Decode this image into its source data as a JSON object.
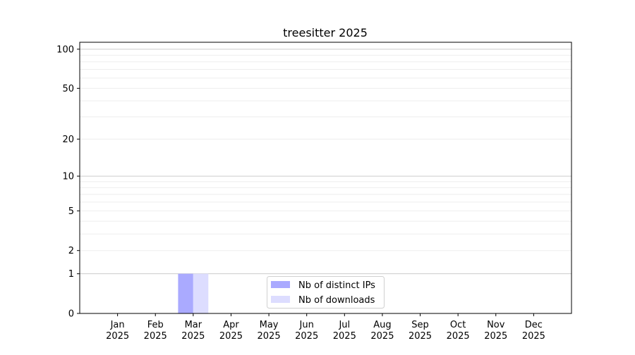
{
  "chart_data": {
    "type": "bar",
    "title": "treesitter 2025",
    "xlabel": "",
    "ylabel": "",
    "yscale": "log10(1+y)",
    "ylim": [
      0,
      113
    ],
    "yticks": [
      0,
      1,
      2,
      5,
      10,
      20,
      50,
      100
    ],
    "grid": "horizontal major and minor",
    "legend": "bottom-center",
    "categories": [
      "Jan\n2025",
      "Feb\n2025",
      "Mar\n2025",
      "Apr\n2025",
      "May\n2025",
      "Jun\n2025",
      "Jul\n2025",
      "Aug\n2025",
      "Sep\n2025",
      "Oct\n2025",
      "Nov\n2025",
      "Dec\n2025"
    ],
    "series": [
      {
        "name": "Nb of distinct IPs",
        "color": "#aaaaff",
        "values": [
          0,
          0,
          1,
          0,
          0,
          0,
          0,
          0,
          0,
          0,
          0,
          0
        ]
      },
      {
        "name": "Nb of downloads",
        "color": "#ddddff",
        "values": [
          0,
          0,
          1,
          0,
          0,
          0,
          0,
          0,
          0,
          0,
          0,
          0
        ]
      }
    ]
  }
}
